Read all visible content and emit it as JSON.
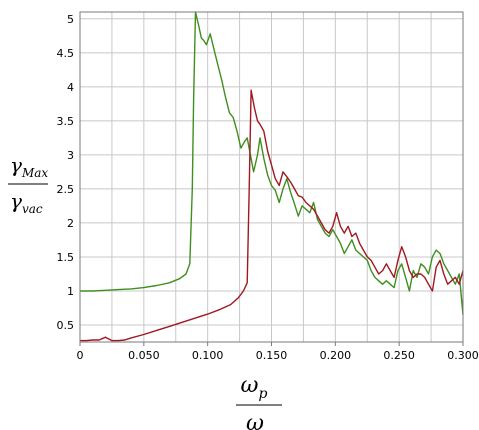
{
  "chart_data": {
    "type": "line",
    "title": "",
    "xlabel": {
      "num_main": "ω",
      "num_sub": "p",
      "den_main": "ω"
    },
    "ylabel": {
      "num_main": "γ",
      "num_sub": "Max",
      "den_main": "γ",
      "den_sub": "vac"
    },
    "xlim": [
      0,
      0.3
    ],
    "ylim": [
      0.25,
      5.1
    ],
    "grid": true,
    "x_ticks": [
      {
        "v": 0,
        "t": "0"
      },
      {
        "v": 0.05,
        "t": "0.050"
      },
      {
        "v": 0.1,
        "t": "0.100"
      },
      {
        "v": 0.15,
        "t": "0.150"
      },
      {
        "v": 0.2,
        "t": "0.200"
      },
      {
        "v": 0.25,
        "t": "0.250"
      },
      {
        "v": 0.3,
        "t": "0.300"
      }
    ],
    "x_minor_step": 0.025,
    "y_ticks": [
      {
        "v": 0.5,
        "t": "0.5"
      },
      {
        "v": 1,
        "t": "1"
      },
      {
        "v": 1.5,
        "t": "1.5"
      },
      {
        "v": 2,
        "t": "2"
      },
      {
        "v": 2.5,
        "t": "2.5"
      },
      {
        "v": 3,
        "t": "3"
      },
      {
        "v": 3.5,
        "t": "3.5"
      },
      {
        "v": 4,
        "t": "4"
      },
      {
        "v": 4.5,
        "t": "4.5"
      },
      {
        "v": 5,
        "t": "5"
      }
    ],
    "series": [
      {
        "color": "#3f8f1f",
        "points": [
          [
            0,
            1.0
          ],
          [
            0.01,
            1.0
          ],
          [
            0.02,
            1.01
          ],
          [
            0.03,
            1.02
          ],
          [
            0.04,
            1.03
          ],
          [
            0.05,
            1.05
          ],
          [
            0.06,
            1.08
          ],
          [
            0.07,
            1.12
          ],
          [
            0.078,
            1.18
          ],
          [
            0.083,
            1.25
          ],
          [
            0.086,
            1.4
          ],
          [
            0.088,
            2.5
          ],
          [
            0.089,
            3.8
          ],
          [
            0.0905,
            5.1
          ],
          [
            0.093,
            4.9
          ],
          [
            0.095,
            4.72
          ],
          [
            0.097,
            4.68
          ],
          [
            0.099,
            4.62
          ],
          [
            0.102,
            4.78
          ],
          [
            0.105,
            4.55
          ],
          [
            0.108,
            4.32
          ],
          [
            0.111,
            4.1
          ],
          [
            0.114,
            3.85
          ],
          [
            0.117,
            3.62
          ],
          [
            0.12,
            3.55
          ],
          [
            0.123,
            3.35
          ],
          [
            0.126,
            3.1
          ],
          [
            0.129,
            3.2
          ],
          [
            0.131,
            3.25
          ],
          [
            0.133,
            3.05
          ],
          [
            0.136,
            2.75
          ],
          [
            0.139,
            3.0
          ],
          [
            0.141,
            3.25
          ],
          [
            0.144,
            2.95
          ],
          [
            0.147,
            2.7
          ],
          [
            0.15,
            2.55
          ],
          [
            0.153,
            2.48
          ],
          [
            0.156,
            2.3
          ],
          [
            0.159,
            2.5
          ],
          [
            0.162,
            2.65
          ],
          [
            0.165,
            2.45
          ],
          [
            0.168,
            2.28
          ],
          [
            0.171,
            2.1
          ],
          [
            0.174,
            2.25
          ],
          [
            0.177,
            2.2
          ],
          [
            0.18,
            2.15
          ],
          [
            0.183,
            2.3
          ],
          [
            0.186,
            2.05
          ],
          [
            0.189,
            1.95
          ],
          [
            0.192,
            1.85
          ],
          [
            0.195,
            1.8
          ],
          [
            0.198,
            1.9
          ],
          [
            0.201,
            1.8
          ],
          [
            0.204,
            1.7
          ],
          [
            0.207,
            1.55
          ],
          [
            0.21,
            1.65
          ],
          [
            0.213,
            1.75
          ],
          [
            0.216,
            1.6
          ],
          [
            0.219,
            1.55
          ],
          [
            0.222,
            1.5
          ],
          [
            0.225,
            1.45
          ],
          [
            0.228,
            1.3
          ],
          [
            0.231,
            1.2
          ],
          [
            0.234,
            1.15
          ],
          [
            0.237,
            1.1
          ],
          [
            0.24,
            1.15
          ],
          [
            0.243,
            1.1
          ],
          [
            0.246,
            1.05
          ],
          [
            0.249,
            1.3
          ],
          [
            0.252,
            1.4
          ],
          [
            0.255,
            1.2
          ],
          [
            0.258,
            1.0
          ],
          [
            0.261,
            1.3
          ],
          [
            0.264,
            1.2
          ],
          [
            0.267,
            1.4
          ],
          [
            0.27,
            1.35
          ],
          [
            0.273,
            1.25
          ],
          [
            0.276,
            1.5
          ],
          [
            0.279,
            1.6
          ],
          [
            0.282,
            1.55
          ],
          [
            0.285,
            1.4
          ],
          [
            0.288,
            1.3
          ],
          [
            0.291,
            1.2
          ],
          [
            0.294,
            1.1
          ],
          [
            0.297,
            1.25
          ],
          [
            0.3,
            0.65
          ]
        ]
      },
      {
        "color": "#a01822",
        "points": [
          [
            0,
            0.27
          ],
          [
            0.005,
            0.27
          ],
          [
            0.01,
            0.28
          ],
          [
            0.015,
            0.28
          ],
          [
            0.02,
            0.32
          ],
          [
            0.025,
            0.27
          ],
          [
            0.03,
            0.27
          ],
          [
            0.035,
            0.28
          ],
          [
            0.04,
            0.31
          ],
          [
            0.05,
            0.36
          ],
          [
            0.06,
            0.42
          ],
          [
            0.07,
            0.48
          ],
          [
            0.08,
            0.54
          ],
          [
            0.09,
            0.6
          ],
          [
            0.1,
            0.66
          ],
          [
            0.11,
            0.73
          ],
          [
            0.118,
            0.8
          ],
          [
            0.124,
            0.9
          ],
          [
            0.128,
            1.0
          ],
          [
            0.131,
            1.12
          ],
          [
            0.1325,
            2.5
          ],
          [
            0.134,
            3.95
          ],
          [
            0.1365,
            3.7
          ],
          [
            0.139,
            3.5
          ],
          [
            0.141,
            3.45
          ],
          [
            0.144,
            3.35
          ],
          [
            0.147,
            3.05
          ],
          [
            0.15,
            2.85
          ],
          [
            0.153,
            2.65
          ],
          [
            0.156,
            2.55
          ],
          [
            0.159,
            2.75
          ],
          [
            0.162,
            2.68
          ],
          [
            0.165,
            2.6
          ],
          [
            0.168,
            2.5
          ],
          [
            0.171,
            2.4
          ],
          [
            0.174,
            2.38
          ],
          [
            0.177,
            2.3
          ],
          [
            0.18,
            2.25
          ],
          [
            0.183,
            2.2
          ],
          [
            0.186,
            2.1
          ],
          [
            0.189,
            2.0
          ],
          [
            0.192,
            1.9
          ],
          [
            0.195,
            1.85
          ],
          [
            0.198,
            1.95
          ],
          [
            0.201,
            2.15
          ],
          [
            0.204,
            1.95
          ],
          [
            0.207,
            1.85
          ],
          [
            0.21,
            1.95
          ],
          [
            0.213,
            1.8
          ],
          [
            0.216,
            1.85
          ],
          [
            0.219,
            1.7
          ],
          [
            0.222,
            1.6
          ],
          [
            0.225,
            1.5
          ],
          [
            0.228,
            1.45
          ],
          [
            0.231,
            1.35
          ],
          [
            0.234,
            1.25
          ],
          [
            0.237,
            1.3
          ],
          [
            0.24,
            1.4
          ],
          [
            0.243,
            1.3
          ],
          [
            0.246,
            1.2
          ],
          [
            0.249,
            1.45
          ],
          [
            0.252,
            1.65
          ],
          [
            0.255,
            1.5
          ],
          [
            0.258,
            1.3
          ],
          [
            0.261,
            1.2
          ],
          [
            0.264,
            1.25
          ],
          [
            0.267,
            1.25
          ],
          [
            0.27,
            1.2
          ],
          [
            0.273,
            1.1
          ],
          [
            0.276,
            1.0
          ],
          [
            0.279,
            1.35
          ],
          [
            0.282,
            1.45
          ],
          [
            0.285,
            1.25
          ],
          [
            0.288,
            1.1
          ],
          [
            0.291,
            1.15
          ],
          [
            0.294,
            1.2
          ],
          [
            0.297,
            1.1
          ],
          [
            0.3,
            1.3
          ]
        ]
      }
    ]
  }
}
